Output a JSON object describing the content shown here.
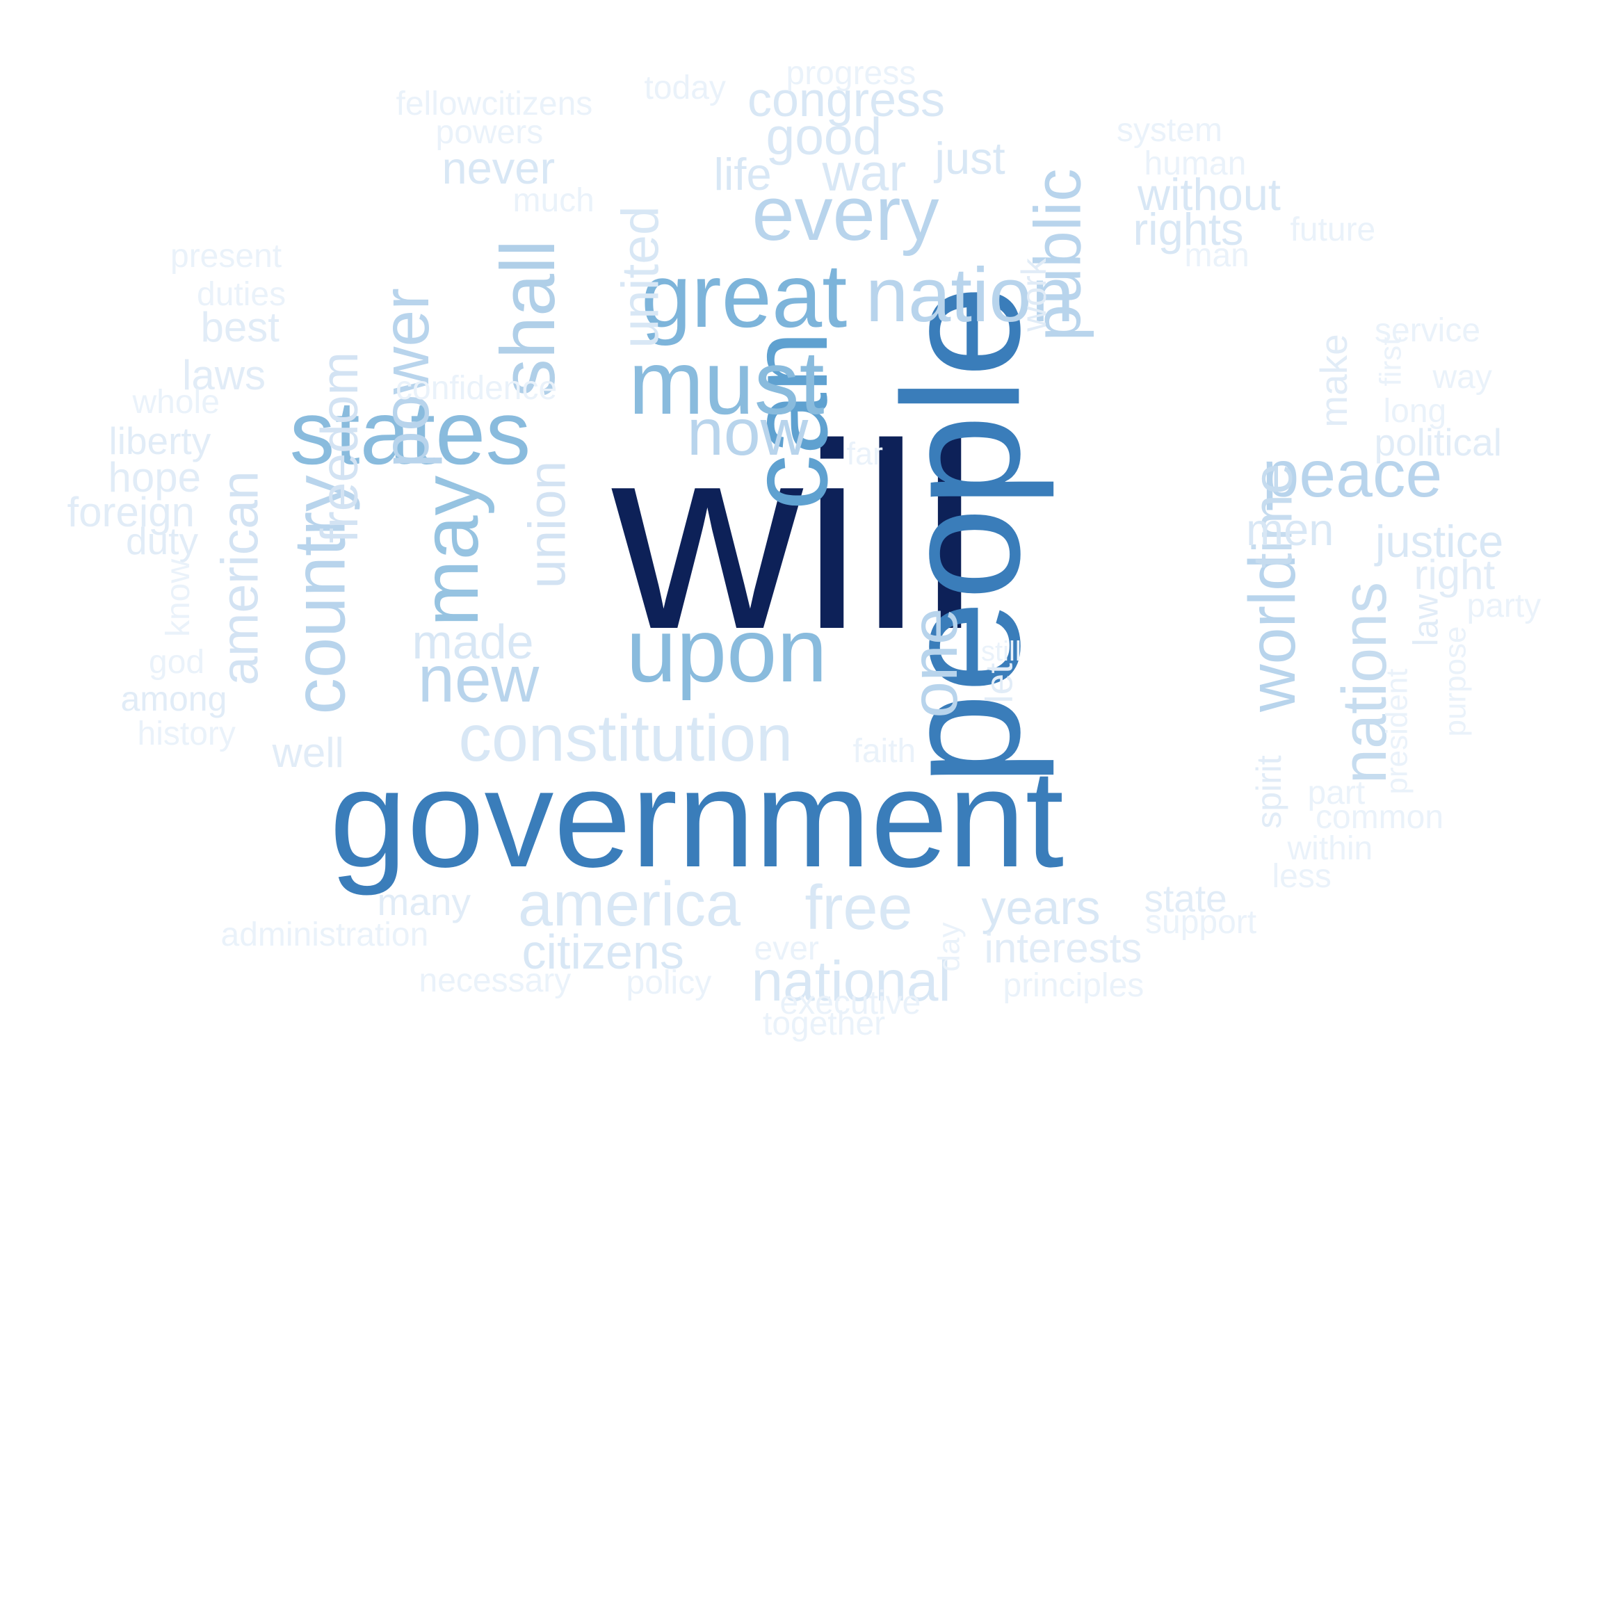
{
  "words": [
    {
      "text": "will",
      "color": "#0d2158"
    },
    {
      "text": "government",
      "color": "#3a7dba"
    },
    {
      "text": "people",
      "color": "#3a7dba"
    },
    {
      "text": "can",
      "color": "#5fa1d0"
    },
    {
      "text": "great",
      "color": "#7db4da"
    },
    {
      "text": "must",
      "color": "#89bbdd"
    },
    {
      "text": "upon",
      "color": "#89bbdd"
    },
    {
      "text": "states",
      "color": "#89bbdd"
    },
    {
      "text": "may",
      "color": "#96c3e1"
    },
    {
      "text": "shall",
      "color": "#b0cfe8"
    },
    {
      "text": "nation",
      "color": "#b8d4ec"
    },
    {
      "text": "every",
      "color": "#b8d4ec"
    },
    {
      "text": "country",
      "color": "#b8d4ec"
    },
    {
      "text": "world",
      "color": "#b8d4ec"
    },
    {
      "text": "peace",
      "color": "#b8d4ec"
    },
    {
      "text": "power",
      "color": "#b8d4ec"
    },
    {
      "text": "public",
      "color": "#b8d4ec"
    },
    {
      "text": "now",
      "color": "#b8d4ec"
    },
    {
      "text": "new",
      "color": "#b8d4ec"
    },
    {
      "text": "one",
      "color": "#b8d4ec"
    },
    {
      "text": "nations",
      "color": "#c6dcef"
    },
    {
      "text": "time",
      "color": "#c6dcef"
    },
    {
      "text": "union",
      "color": "#d3e3f3"
    },
    {
      "text": "freedom",
      "color": "#d3e3f3"
    },
    {
      "text": "american",
      "color": "#d3e3f3"
    },
    {
      "text": "united",
      "color": "#d8e7f5"
    },
    {
      "text": "constitution",
      "color": "#d8e7f5"
    },
    {
      "text": "war",
      "color": "#d8e7f5"
    },
    {
      "text": "good",
      "color": "#d8e7f5"
    },
    {
      "text": "congress",
      "color": "#d8e7f5"
    },
    {
      "text": "america",
      "color": "#d8e7f5"
    },
    {
      "text": "free",
      "color": "#d8e7f5"
    },
    {
      "text": "national",
      "color": "#d8e7f5"
    },
    {
      "text": "made",
      "color": "#d8e7f5"
    },
    {
      "text": "men",
      "color": "#d8e7f5"
    },
    {
      "text": "justice",
      "color": "#d8e7f5"
    },
    {
      "text": "years",
      "color": "#d8e7f5"
    },
    {
      "text": "citizens",
      "color": "#d8e7f5"
    },
    {
      "text": "without",
      "color": "#d8e7f5"
    },
    {
      "text": "rights",
      "color": "#d8e7f5"
    },
    {
      "text": "never",
      "color": "#d8e7f5"
    },
    {
      "text": "just",
      "color": "#d8e7f5"
    },
    {
      "text": "life",
      "color": "#d8e7f5"
    },
    {
      "text": "make",
      "color": "#e1ecf7"
    },
    {
      "text": "right",
      "color": "#e1ecf7"
    },
    {
      "text": "political",
      "color": "#e1ecf7"
    },
    {
      "text": "liberty",
      "color": "#e1ecf7"
    },
    {
      "text": "laws",
      "color": "#e1ecf7"
    },
    {
      "text": "best",
      "color": "#e1ecf7"
    },
    {
      "text": "hope",
      "color": "#e1ecf7"
    },
    {
      "text": "foreign",
      "color": "#e1ecf7"
    },
    {
      "text": "duty",
      "color": "#e1ecf7"
    },
    {
      "text": "among",
      "color": "#e1ecf7"
    },
    {
      "text": "well",
      "color": "#e1ecf7"
    },
    {
      "text": "interests",
      "color": "#e1ecf7"
    },
    {
      "text": "state",
      "color": "#e1ecf7"
    },
    {
      "text": "many",
      "color": "#e1ecf7"
    },
    {
      "text": "spirit",
      "color": "#e1ecf7"
    },
    {
      "text": "let",
      "color": "#e1ecf7"
    },
    {
      "text": "work",
      "color": "#e1ecf7"
    },
    {
      "text": "law",
      "color": "#e1ecf7"
    },
    {
      "text": "duties",
      "color": "#eaf2fa"
    },
    {
      "text": "confidence",
      "color": "#eaf2fa"
    },
    {
      "text": "whole",
      "color": "#eaf2fa"
    },
    {
      "text": "god",
      "color": "#eaf2fa"
    },
    {
      "text": "history",
      "color": "#eaf2fa"
    },
    {
      "text": "know",
      "color": "#eaf2fa"
    },
    {
      "text": "present",
      "color": "#eaf2fa"
    },
    {
      "text": "much",
      "color": "#eaf2fa"
    },
    {
      "text": "powers",
      "color": "#eaf2fa"
    },
    {
      "text": "fellowcitizens",
      "color": "#eaf2fa"
    },
    {
      "text": "today",
      "color": "#eaf2fa"
    },
    {
      "text": "progress",
      "color": "#eaf2fa"
    },
    {
      "text": "system",
      "color": "#eaf2fa"
    },
    {
      "text": "human",
      "color": "#eaf2fa"
    },
    {
      "text": "future",
      "color": "#eaf2fa"
    },
    {
      "text": "man",
      "color": "#eaf2fa"
    },
    {
      "text": "service",
      "color": "#eaf2fa"
    },
    {
      "text": "first",
      "color": "#eaf2fa"
    },
    {
      "text": "way",
      "color": "#eaf2fa"
    },
    {
      "text": "long",
      "color": "#eaf2fa"
    },
    {
      "text": "party",
      "color": "#eaf2fa"
    },
    {
      "text": "purpose",
      "color": "#eaf2fa"
    },
    {
      "text": "president",
      "color": "#eaf2fa"
    },
    {
      "text": "far",
      "color": "#eaf2fa"
    },
    {
      "text": "still",
      "color": "#eaf2fa"
    },
    {
      "text": "faith",
      "color": "#eaf2fa"
    },
    {
      "text": "part",
      "color": "#eaf2fa"
    },
    {
      "text": "common",
      "color": "#eaf2fa"
    },
    {
      "text": "within",
      "color": "#eaf2fa"
    },
    {
      "text": "less",
      "color": "#eaf2fa"
    },
    {
      "text": "support",
      "color": "#eaf2fa"
    },
    {
      "text": "day",
      "color": "#eaf2fa"
    },
    {
      "text": "administration",
      "color": "#eaf2fa"
    },
    {
      "text": "ever",
      "color": "#eaf2fa"
    },
    {
      "text": "necessary",
      "color": "#eaf2fa"
    },
    {
      "text": "policy",
      "color": "#eaf2fa"
    },
    {
      "text": "principles",
      "color": "#eaf2fa"
    },
    {
      "text": "executive",
      "color": "#eaf2fa"
    },
    {
      "text": "together",
      "color": "#eaf2fa"
    }
  ]
}
